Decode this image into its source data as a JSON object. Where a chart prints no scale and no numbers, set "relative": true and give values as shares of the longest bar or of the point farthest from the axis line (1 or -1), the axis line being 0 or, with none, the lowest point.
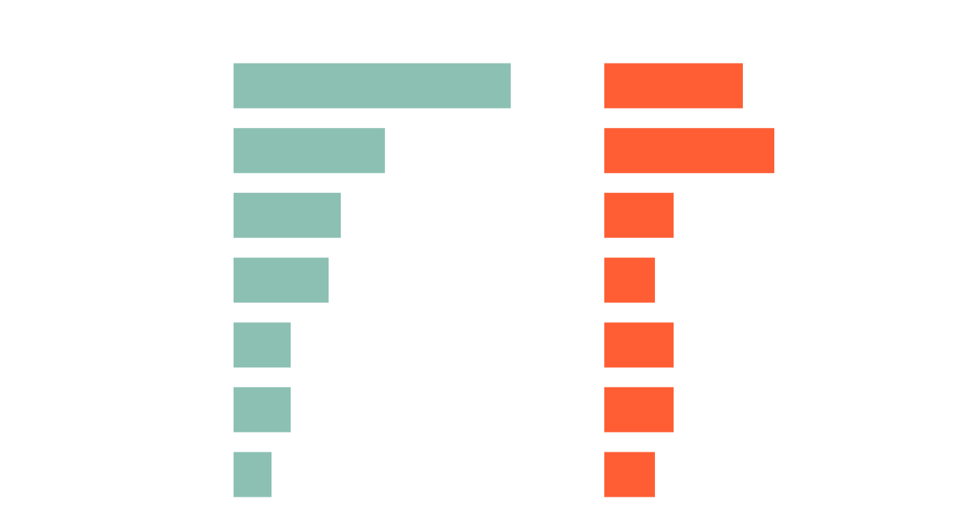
{
  "chart_data": [
    {
      "type": "bar",
      "orientation": "horizontal",
      "relative": true,
      "categories": [
        null,
        null,
        null,
        null,
        null,
        null,
        null
      ],
      "color": "#8cc0b3",
      "values": [
        1,
        0.546,
        0.387,
        0.343,
        0.206,
        0.206,
        0.137
      ]
    },
    {
      "type": "bar",
      "orientation": "horizontal",
      "relative": true,
      "categories": [
        null,
        null,
        null,
        null,
        null,
        null,
        null
      ],
      "color": "#ff5e35",
      "values": [
        0.815,
        1,
        0.408,
        0.298,
        0.408,
        0.408,
        0.298
      ]
    }
  ]
}
